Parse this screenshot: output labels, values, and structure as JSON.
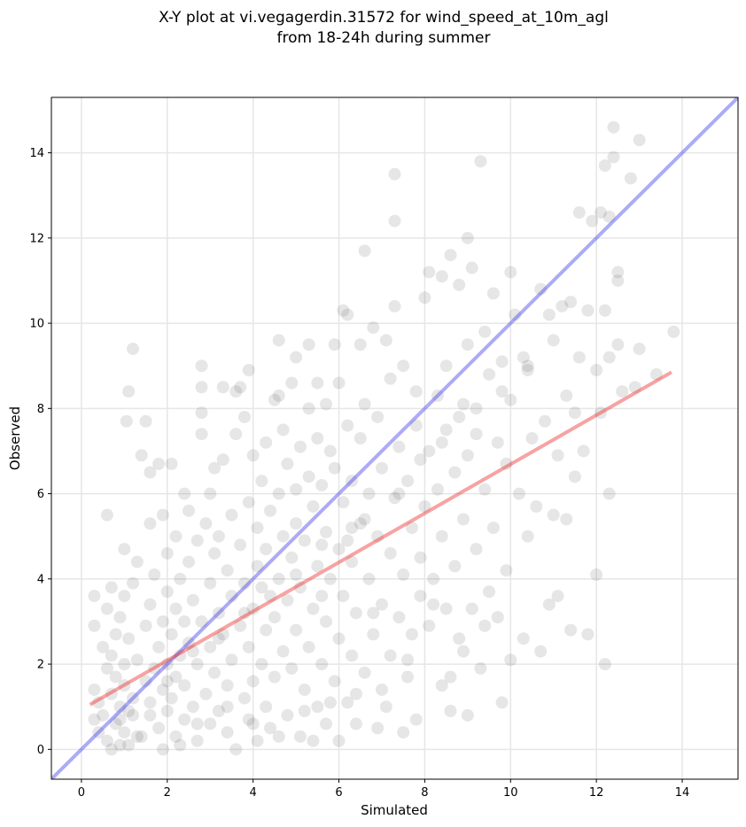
{
  "chart_data": {
    "type": "scatter",
    "title_lines": [
      "X-Y plot at vi.vegagerdin.31572 for wind_speed_at_10m_agl",
      "from 18-24h during summer"
    ],
    "xlabel": "Simulated",
    "ylabel": "Observed",
    "xlim": [
      -0.7,
      15.3
    ],
    "ylim": [
      -0.7,
      15.3
    ],
    "xticks": [
      0,
      2,
      4,
      6,
      8,
      10,
      12,
      14
    ],
    "yticks": [
      0,
      2,
      4,
      6,
      8,
      10,
      12,
      14
    ],
    "grid": true,
    "point_color": "#555555",
    "point_opacity": 0.15,
    "identity_line": {
      "from": [
        -0.7,
        -0.7
      ],
      "to": [
        15.3,
        15.3
      ],
      "color": "#4444ee",
      "opacity": 0.45
    },
    "fit_line": {
      "from": [
        0.2,
        1.05
      ],
      "to": [
        13.75,
        8.85
      ],
      "color": "#ee3333",
      "opacity": 0.45
    },
    "points": [
      [
        0.3,
        0.7
      ],
      [
        0.3,
        1.4
      ],
      [
        0.3,
        2.9
      ],
      [
        0.3,
        3.6
      ],
      [
        0.4,
        0.4
      ],
      [
        0.4,
        1.1
      ],
      [
        0.5,
        2.4
      ],
      [
        0.5,
        0.8
      ],
      [
        0.6,
        1.9
      ],
      [
        0.6,
        0.2
      ],
      [
        0.6,
        5.5
      ],
      [
        0.6,
        3.3
      ],
      [
        0.7,
        0.0
      ],
      [
        0.7,
        1.3
      ],
      [
        0.7,
        2.2
      ],
      [
        0.7,
        3.8
      ],
      [
        0.8,
        0.6
      ],
      [
        0.8,
        1.7
      ],
      [
        0.8,
        2.7
      ],
      [
        0.9,
        0.1
      ],
      [
        0.9,
        1.0
      ],
      [
        0.9,
        3.1
      ],
      [
        1.0,
        0.4
      ],
      [
        1.0,
        1.5
      ],
      [
        1.0,
        2.0
      ],
      [
        1.0,
        4.7
      ],
      [
        1.0,
        3.6
      ],
      [
        1.05,
        7.7
      ],
      [
        1.1,
        8.4
      ],
      [
        1.1,
        0.9
      ],
      [
        1.1,
        2.6
      ],
      [
        1.2,
        9.4
      ],
      [
        1.2,
        1.2
      ],
      [
        1.2,
        3.9
      ],
      [
        1.3,
        0.3
      ],
      [
        1.3,
        2.1
      ],
      [
        1.3,
        4.4
      ],
      [
        1.4,
        6.9
      ],
      [
        1.5,
        7.7
      ],
      [
        1.5,
        1.6
      ],
      [
        1.5,
        2.9
      ],
      [
        1.6,
        5.3
      ],
      [
        1.6,
        6.5
      ],
      [
        1.6,
        0.8
      ],
      [
        1.6,
        3.4
      ],
      [
        1.7,
        1.9
      ],
      [
        1.7,
        4.1
      ],
      [
        1.8,
        0.5
      ],
      [
        1.8,
        2.4
      ],
      [
        1.8,
        6.7
      ],
      [
        1.9,
        3.0
      ],
      [
        1.9,
        1.4
      ],
      [
        1.9,
        5.5
      ],
      [
        2.0,
        0.9
      ],
      [
        2.0,
        2.0
      ],
      [
        2.0,
        3.7
      ],
      [
        2.0,
        4.6
      ],
      [
        2.1,
        1.2
      ],
      [
        2.1,
        2.7
      ],
      [
        2.1,
        6.7
      ],
      [
        2.2,
        0.3
      ],
      [
        2.2,
        1.7
      ],
      [
        2.2,
        3.3
      ],
      [
        2.2,
        5.0
      ],
      [
        2.3,
        2.2
      ],
      [
        2.3,
        4.0
      ],
      [
        2.4,
        0.7
      ],
      [
        2.4,
        1.5
      ],
      [
        2.4,
        3.0
      ],
      [
        2.4,
        6.0
      ],
      [
        2.5,
        2.5
      ],
      [
        2.5,
        4.4
      ],
      [
        2.5,
        5.6
      ],
      [
        2.6,
        1.0
      ],
      [
        2.6,
        3.5
      ],
      [
        2.7,
        0.2
      ],
      [
        2.7,
        2.0
      ],
      [
        2.7,
        4.9
      ],
      [
        2.8,
        7.4
      ],
      [
        2.8,
        7.9
      ],
      [
        2.8,
        8.5
      ],
      [
        2.8,
        9.0
      ],
      [
        2.8,
        3.0
      ],
      [
        2.9,
        1.3
      ],
      [
        2.9,
        5.3
      ],
      [
        3.0,
        0.6
      ],
      [
        3.0,
        2.4
      ],
      [
        3.0,
        3.9
      ],
      [
        3.0,
        6.0
      ],
      [
        3.1,
        1.8
      ],
      [
        3.1,
        4.6
      ],
      [
        3.1,
        6.6
      ],
      [
        3.2,
        0.9
      ],
      [
        3.2,
        3.2
      ],
      [
        3.2,
        5.0
      ],
      [
        3.3,
        2.7
      ],
      [
        3.3,
        8.5
      ],
      [
        3.3,
        6.8
      ],
      [
        3.4,
        0.4
      ],
      [
        3.4,
        1.5
      ],
      [
        3.4,
        4.2
      ],
      [
        3.5,
        2.1
      ],
      [
        3.5,
        3.6
      ],
      [
        3.5,
        5.5
      ],
      [
        3.6,
        8.4
      ],
      [
        3.6,
        0.0
      ],
      [
        3.6,
        7.4
      ],
      [
        3.7,
        2.9
      ],
      [
        3.7,
        4.8
      ],
      [
        3.7,
        8.5
      ],
      [
        3.8,
        1.2
      ],
      [
        3.8,
        3.9
      ],
      [
        3.8,
        7.8
      ],
      [
        3.9,
        0.7
      ],
      [
        3.9,
        2.4
      ],
      [
        3.9,
        5.8
      ],
      [
        3.9,
        8.9
      ],
      [
        4.0,
        1.6
      ],
      [
        4.0,
        3.3
      ],
      [
        4.0,
        6.9
      ],
      [
        4.1,
        4.3
      ],
      [
        4.1,
        0.2
      ],
      [
        4.1,
        5.2
      ],
      [
        4.2,
        2.0
      ],
      [
        4.2,
        3.8
      ],
      [
        4.2,
        6.3
      ],
      [
        4.3,
        1.0
      ],
      [
        4.3,
        2.8
      ],
      [
        4.3,
        4.7
      ],
      [
        4.3,
        7.2
      ],
      [
        4.4,
        0.5
      ],
      [
        4.4,
        5.6
      ],
      [
        4.5,
        8.2
      ],
      [
        4.5,
        3.1
      ],
      [
        4.5,
        1.7
      ],
      [
        4.6,
        8.3
      ],
      [
        4.6,
        9.6
      ],
      [
        4.6,
        4.0
      ],
      [
        4.6,
        6.0
      ],
      [
        4.7,
        2.3
      ],
      [
        4.7,
        5.0
      ],
      [
        4.7,
        7.5
      ],
      [
        4.8,
        0.8
      ],
      [
        4.8,
        3.5
      ],
      [
        4.8,
        6.7
      ],
      [
        4.9,
        8.6
      ],
      [
        4.9,
        1.9
      ],
      [
        4.9,
        4.5
      ],
      [
        5.0,
        2.8
      ],
      [
        5.0,
        5.3
      ],
      [
        5.0,
        9.2
      ],
      [
        5.0,
        6.1
      ],
      [
        5.1,
        0.3
      ],
      [
        5.1,
        3.8
      ],
      [
        5.1,
        7.1
      ],
      [
        5.2,
        1.4
      ],
      [
        5.2,
        4.9
      ],
      [
        5.3,
        8.0
      ],
      [
        5.3,
        9.5
      ],
      [
        5.3,
        2.4
      ],
      [
        5.3,
        6.4
      ],
      [
        5.4,
        0.2
      ],
      [
        5.4,
        3.3
      ],
      [
        5.4,
        5.7
      ],
      [
        5.5,
        8.6
      ],
      [
        5.5,
        1.0
      ],
      [
        5.5,
        4.3
      ],
      [
        5.5,
        7.3
      ],
      [
        5.6,
        2.0
      ],
      [
        5.6,
        6.2
      ],
      [
        5.7,
        0.6
      ],
      [
        5.7,
        3.0
      ],
      [
        5.7,
        5.1
      ],
      [
        5.7,
        8.1
      ],
      [
        5.8,
        4.0
      ],
      [
        5.8,
        7.0
      ],
      [
        5.9,
        1.6
      ],
      [
        5.9,
        6.6
      ],
      [
        5.9,
        9.5
      ],
      [
        6.0,
        0.2
      ],
      [
        6.0,
        2.6
      ],
      [
        6.0,
        4.7
      ],
      [
        6.0,
        8.6
      ],
      [
        6.1,
        10.3
      ],
      [
        6.1,
        3.6
      ],
      [
        6.1,
        5.8
      ],
      [
        6.2,
        10.2
      ],
      [
        6.2,
        1.1
      ],
      [
        6.2,
        7.6
      ],
      [
        6.3,
        2.2
      ],
      [
        6.3,
        4.4
      ],
      [
        6.3,
        6.3
      ],
      [
        6.4,
        0.6
      ],
      [
        6.4,
        3.2
      ],
      [
        6.5,
        9.5
      ],
      [
        6.5,
        5.3
      ],
      [
        6.5,
        7.3
      ],
      [
        6.6,
        11.7
      ],
      [
        6.6,
        1.8
      ],
      [
        6.6,
        8.1
      ],
      [
        6.7,
        4.0
      ],
      [
        6.7,
        6.0
      ],
      [
        6.8,
        2.7
      ],
      [
        6.8,
        9.9
      ],
      [
        6.9,
        0.5
      ],
      [
        6.9,
        5.0
      ],
      [
        6.9,
        7.8
      ],
      [
        7.0,
        3.4
      ],
      [
        7.0,
        6.6
      ],
      [
        7.1,
        9.6
      ],
      [
        7.1,
        1.0
      ],
      [
        7.2,
        2.2
      ],
      [
        7.2,
        4.6
      ],
      [
        7.2,
        8.7
      ],
      [
        7.3,
        13.5
      ],
      [
        7.3,
        12.4
      ],
      [
        7.3,
        10.4
      ],
      [
        7.3,
        5.9
      ],
      [
        7.4,
        3.1
      ],
      [
        7.4,
        7.1
      ],
      [
        7.5,
        0.4
      ],
      [
        7.5,
        4.1
      ],
      [
        7.5,
        9.0
      ],
      [
        7.6,
        1.7
      ],
      [
        7.6,
        6.3
      ],
      [
        7.7,
        2.7
      ],
      [
        7.7,
        5.2
      ],
      [
        7.8,
        0.7
      ],
      [
        7.8,
        7.6
      ],
      [
        7.8,
        8.4
      ],
      [
        7.9,
        4.5
      ],
      [
        7.9,
        3.6
      ],
      [
        8.0,
        10.6
      ],
      [
        8.0,
        5.7
      ],
      [
        8.1,
        11.2
      ],
      [
        8.1,
        2.9
      ],
      [
        8.1,
        7.0
      ],
      [
        8.2,
        4.0
      ],
      [
        8.3,
        8.3
      ],
      [
        8.3,
        6.1
      ],
      [
        8.4,
        1.5
      ],
      [
        8.4,
        11.1
      ],
      [
        8.4,
        5.0
      ],
      [
        8.5,
        3.3
      ],
      [
        8.5,
        9.0
      ],
      [
        8.5,
        7.5
      ],
      [
        8.6,
        0.9
      ],
      [
        8.6,
        11.6
      ],
      [
        8.7,
        4.3
      ],
      [
        8.7,
        6.5
      ],
      [
        8.8,
        2.6
      ],
      [
        8.8,
        10.9
      ],
      [
        8.9,
        8.1
      ],
      [
        8.9,
        5.4
      ],
      [
        9.0,
        12.0
      ],
      [
        9.0,
        0.8
      ],
      [
        9.0,
        6.9
      ],
      [
        9.0,
        9.5
      ],
      [
        9.1,
        3.3
      ],
      [
        9.1,
        11.3
      ],
      [
        9.2,
        7.4
      ],
      [
        9.2,
        4.7
      ],
      [
        9.3,
        13.8
      ],
      [
        9.3,
        1.9
      ],
      [
        9.4,
        9.8
      ],
      [
        9.4,
        6.1
      ],
      [
        9.5,
        3.7
      ],
      [
        9.5,
        8.8
      ],
      [
        9.6,
        10.7
      ],
      [
        9.6,
        5.2
      ],
      [
        9.7,
        3.1
      ],
      [
        9.7,
        7.2
      ],
      [
        9.8,
        1.1
      ],
      [
        9.8,
        9.1
      ],
      [
        9.9,
        6.7
      ],
      [
        9.9,
        4.2
      ],
      [
        10.0,
        11.2
      ],
      [
        10.0,
        2.1
      ],
      [
        10.0,
        8.2
      ],
      [
        10.1,
        10.2
      ],
      [
        10.2,
        6.0
      ],
      [
        10.3,
        9.2
      ],
      [
        10.3,
        2.6
      ],
      [
        10.4,
        5.0
      ],
      [
        10.4,
        8.9
      ],
      [
        10.5,
        7.3
      ],
      [
        10.6,
        5.7
      ],
      [
        10.7,
        10.8
      ],
      [
        10.7,
        2.3
      ],
      [
        10.8,
        7.7
      ],
      [
        10.9,
        3.4
      ],
      [
        10.9,
        10.2
      ],
      [
        11.0,
        5.5
      ],
      [
        11.0,
        9.6
      ],
      [
        11.1,
        3.6
      ],
      [
        11.1,
        6.9
      ],
      [
        11.2,
        10.4
      ],
      [
        11.3,
        8.3
      ],
      [
        11.3,
        5.4
      ],
      [
        11.4,
        10.5
      ],
      [
        11.4,
        2.8
      ],
      [
        11.5,
        7.9
      ],
      [
        11.5,
        6.4
      ],
      [
        11.6,
        12.6
      ],
      [
        11.6,
        9.2
      ],
      [
        11.7,
        7.0
      ],
      [
        11.8,
        10.3
      ],
      [
        11.8,
        2.7
      ],
      [
        11.9,
        12.4
      ],
      [
        12.0,
        8.9
      ],
      [
        12.0,
        4.1
      ],
      [
        12.1,
        12.6
      ],
      [
        12.1,
        7.9
      ],
      [
        12.2,
        10.3
      ],
      [
        12.2,
        13.7
      ],
      [
        12.2,
        2.0
      ],
      [
        12.3,
        12.5
      ],
      [
        12.3,
        9.2
      ],
      [
        12.3,
        6.0
      ],
      [
        12.4,
        14.6
      ],
      [
        12.4,
        13.9
      ],
      [
        12.5,
        11.0
      ],
      [
        12.5,
        11.2
      ],
      [
        12.5,
        9.5
      ],
      [
        12.6,
        8.4
      ],
      [
        12.8,
        13.4
      ],
      [
        12.9,
        8.5
      ],
      [
        13.0,
        9.4
      ],
      [
        13.0,
        14.3
      ],
      [
        13.4,
        8.8
      ],
      [
        13.8,
        9.8
      ],
      [
        6.8,
        3.2
      ],
      [
        7.6,
        2.1
      ],
      [
        8.2,
        3.4
      ],
      [
        8.9,
        2.3
      ],
      [
        9.4,
        2.9
      ],
      [
        8.6,
        1.7
      ],
      [
        7.0,
        1.4
      ],
      [
        6.4,
        1.3
      ],
      [
        5.8,
        1.1
      ],
      [
        5.2,
        0.9
      ],
      [
        4.6,
        0.3
      ],
      [
        4.0,
        0.6
      ],
      [
        3.4,
        1.0
      ],
      [
        2.7,
        0.6
      ],
      [
        2.3,
        0.1
      ],
      [
        1.9,
        0.0
      ],
      [
        1.4,
        0.3
      ],
      [
        1.1,
        0.1
      ],
      [
        0.9,
        0.7
      ],
      [
        5.6,
        3.6
      ],
      [
        6.2,
        4.9
      ],
      [
        6.6,
        5.4
      ],
      [
        7.4,
        6.0
      ],
      [
        7.9,
        6.8
      ],
      [
        8.4,
        7.2
      ],
      [
        8.8,
        7.8
      ],
      [
        9.2,
        8.0
      ],
      [
        9.8,
        8.4
      ],
      [
        10.4,
        9.0
      ],
      [
        3.8,
        3.2
      ],
      [
        4.4,
        3.6
      ],
      [
        5.0,
        4.1
      ],
      [
        5.6,
        4.8
      ],
      [
        6.3,
        5.2
      ],
      [
        3.2,
        2.6
      ],
      [
        2.6,
        2.3
      ],
      [
        2.0,
        1.6
      ],
      [
        1.6,
        1.1
      ],
      [
        1.2,
        0.8
      ]
    ]
  }
}
